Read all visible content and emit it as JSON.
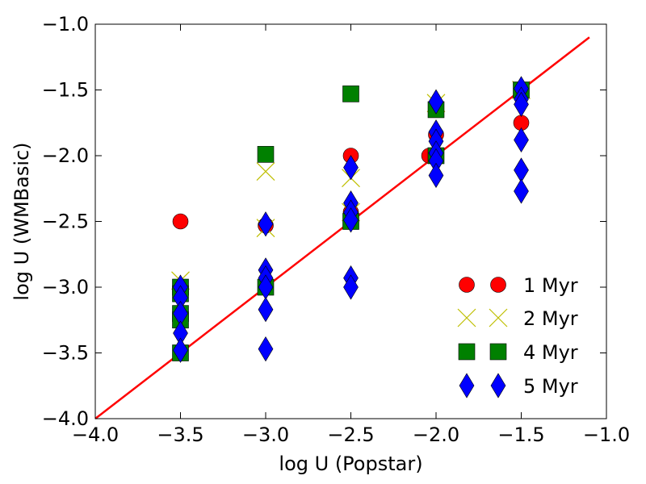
{
  "chart_data": {
    "type": "scatter",
    "title": "",
    "xlabel": "log U (Popstar)",
    "ylabel": "log U (WMBasic)",
    "xlim": [
      -4.0,
      -1.0
    ],
    "ylim": [
      -4.0,
      -1.0
    ],
    "xticks": [
      -4.0,
      -3.5,
      -3.0,
      -2.5,
      -2.0,
      -1.5,
      -1.0
    ],
    "yticks": [
      -4.0,
      -3.5,
      -3.0,
      -2.5,
      -2.0,
      -1.5,
      -1.0
    ],
    "xtick_labels": [
      "−4.0",
      "−3.5",
      "−3.0",
      "−2.5",
      "−2.0",
      "−1.5",
      "−1.0"
    ],
    "ytick_labels": [
      "−4.0",
      "−3.5",
      "−3.0",
      "−2.5",
      "−2.0",
      "−1.5",
      "−1.0"
    ],
    "grid": false,
    "legend_position": "lower-right",
    "reference_line": {
      "name": "one-to-one",
      "color": "#ff0000",
      "x": [
        -4.0,
        -1.1
      ],
      "y": [
        -4.0,
        -1.1
      ]
    },
    "series": [
      {
        "name": "1 Myr",
        "marker": "circle",
        "color": "#ff0000",
        "points": [
          [
            -3.5,
            -2.5
          ],
          [
            -3.0,
            -2.53
          ],
          [
            -2.5,
            -2.0
          ],
          [
            -2.5,
            -2.43
          ],
          [
            -2.04,
            -2.0
          ],
          [
            -2.0,
            -1.84
          ],
          [
            -1.5,
            -1.75
          ]
        ]
      },
      {
        "name": "2 Myr",
        "marker": "x",
        "color": "#bfbf00",
        "points": [
          [
            -3.5,
            -2.95
          ],
          [
            -3.0,
            -2.12
          ],
          [
            -3.0,
            -2.55
          ],
          [
            -2.5,
            -2.17
          ],
          [
            -2.5,
            -2.43
          ],
          [
            -2.0,
            -1.6
          ],
          [
            -1.5,
            -1.5
          ]
        ]
      },
      {
        "name": "4 Myr",
        "marker": "square",
        "color": "#008000",
        "points": [
          [
            -3.5,
            -3.0
          ],
          [
            -3.5,
            -3.05
          ],
          [
            -3.5,
            -3.2
          ],
          [
            -3.5,
            -3.25
          ],
          [
            -3.5,
            -3.5
          ],
          [
            -3.0,
            -1.99
          ],
          [
            -3.0,
            -3.0
          ],
          [
            -2.5,
            -1.53
          ],
          [
            -2.5,
            -2.5
          ],
          [
            -2.0,
            -1.65
          ],
          [
            -2.0,
            -2.0
          ],
          [
            -1.5,
            -1.5
          ]
        ]
      },
      {
        "name": "5 Myr",
        "marker": "diamond",
        "color": "#0000ff",
        "points": [
          [
            -3.5,
            -3.0
          ],
          [
            -3.5,
            -3.08
          ],
          [
            -3.5,
            -3.2
          ],
          [
            -3.5,
            -3.35
          ],
          [
            -3.5,
            -3.48
          ],
          [
            -3.0,
            -2.52
          ],
          [
            -3.0,
            -2.87
          ],
          [
            -3.0,
            -2.93
          ],
          [
            -3.0,
            -3.0
          ],
          [
            -3.0,
            -3.17
          ],
          [
            -3.0,
            -3.47
          ],
          [
            -2.5,
            -2.09
          ],
          [
            -2.5,
            -2.36
          ],
          [
            -2.5,
            -2.43
          ],
          [
            -2.5,
            -2.49
          ],
          [
            -2.5,
            -2.93
          ],
          [
            -2.5,
            -3.0
          ],
          [
            -2.0,
            -1.59
          ],
          [
            -2.0,
            -1.82
          ],
          [
            -2.0,
            -1.89
          ],
          [
            -2.0,
            -1.98
          ],
          [
            -2.0,
            -2.04
          ],
          [
            -2.0,
            -2.15
          ],
          [
            -1.5,
            -1.49
          ],
          [
            -1.5,
            -1.57
          ],
          [
            -1.5,
            -1.61
          ],
          [
            -1.5,
            -1.88
          ],
          [
            -1.5,
            -2.11
          ],
          [
            -1.5,
            -2.27
          ]
        ]
      }
    ]
  }
}
